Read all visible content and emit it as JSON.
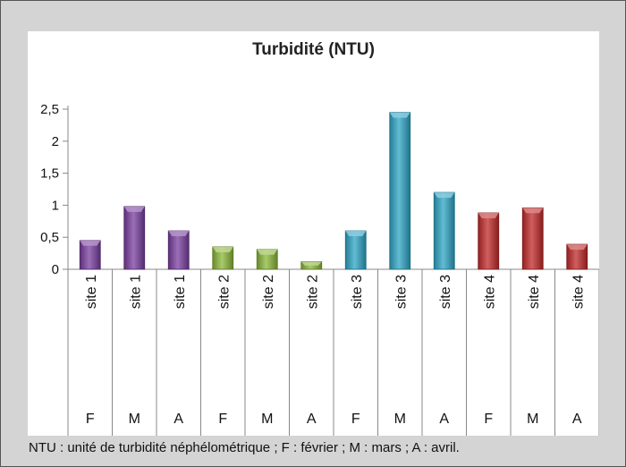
{
  "chart_data": {
    "type": "bar",
    "title": "Turbidité (NTU)",
    "ylim": [
      0,
      2.5
    ],
    "yticks": [
      "0",
      "0,5",
      "1",
      "1,5",
      "2",
      "2,5"
    ],
    "ytick_values": [
      0,
      0.5,
      1,
      1.5,
      2,
      2.5
    ],
    "grid": false,
    "categories": [
      "site 1",
      "site 1",
      "site 1",
      "site 2",
      "site 2",
      "site 2",
      "site 3",
      "site 3",
      "site 3",
      "site 4",
      "site 4",
      "site 4"
    ],
    "months": [
      "F",
      "M",
      "A",
      "F",
      "M",
      "A",
      "F",
      "M",
      "A",
      "F",
      "M",
      "A"
    ],
    "values": [
      0.45,
      0.98,
      0.6,
      0.35,
      0.31,
      0.12,
      0.6,
      2.45,
      1.2,
      0.88,
      0.96,
      0.39
    ],
    "colors": [
      "#7a3fa0",
      "#7a3fa0",
      "#7a3fa0",
      "#8cb83a",
      "#8cb83a",
      "#8cb83a",
      "#2ea6c6",
      "#2ea6c6",
      "#2ea6c6",
      "#c22a2a",
      "#c22a2a",
      "#c22a2a"
    ]
  },
  "footnote": "NTU : unité de turbidité néphélométrique ; F : février ; M : mars ; A : avril."
}
